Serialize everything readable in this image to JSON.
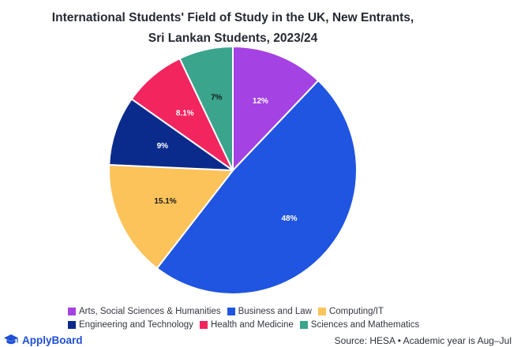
{
  "title_line1": "International Students' Field of Study in the UK, New Entrants,",
  "title_line2": "Sri Lankan Students, 2023/24",
  "brand": "ApplyBoard",
  "source": "Source: HESA • Academic year is Aug–Jul",
  "chart_data": {
    "type": "pie",
    "title": "International Students' Field of Study in the UK, New Entrants, Sri Lankan Students, 2023/24",
    "start_angle_deg": 0,
    "direction": "clockwise",
    "legend_position": "bottom",
    "slices": [
      {
        "label": "Arts, Social Sciences & Humanities",
        "value": 12,
        "display": "12%",
        "color": "#a442e3",
        "label_color": "#ffffff"
      },
      {
        "label": "Business and Law",
        "value": 48,
        "display": "48%",
        "color": "#1f55e0",
        "label_color": "#ffffff"
      },
      {
        "label": "Computing/IT",
        "value": 15.1,
        "display": "15.1%",
        "color": "#fcc35a",
        "label_color": "#1a1a1a"
      },
      {
        "label": "Engineering and Technology",
        "value": 9,
        "display": "9%",
        "color": "#0b2b8c",
        "label_color": "#ffffff"
      },
      {
        "label": "Health and Medicine",
        "value": 8.1,
        "display": "8.1%",
        "color": "#f2255e",
        "label_color": "#ffffff"
      },
      {
        "label": "Sciences and Mathematics",
        "value": 7,
        "display": "7%",
        "color": "#3aa58c",
        "label_color": "#1a1a1a"
      }
    ]
  }
}
